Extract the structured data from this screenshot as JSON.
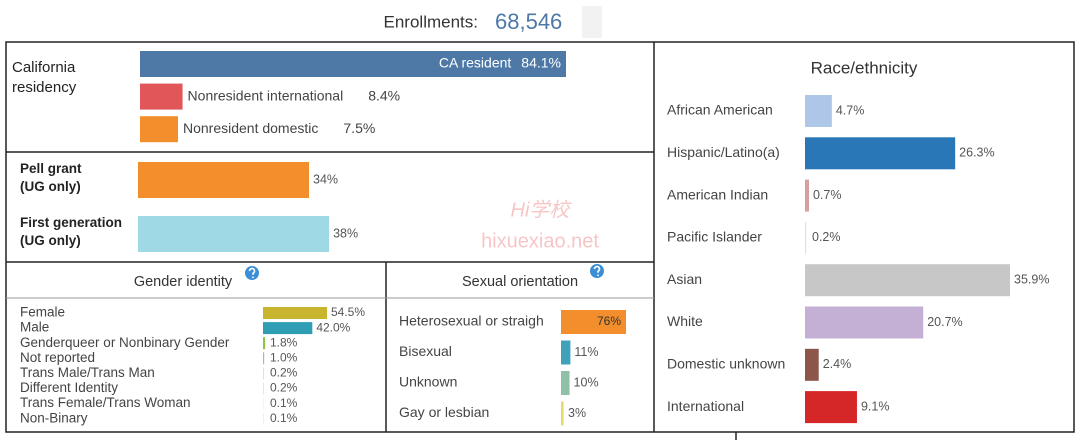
{
  "header": {
    "label": "Enrollments:",
    "value": "68,546"
  },
  "watermark": [
    "Hi学校",
    "hixuexiao.net"
  ],
  "chart_data": [
    {
      "type": "bar",
      "orientation": "horizontal",
      "title": "California\nresidency",
      "categories": [
        "CA resident",
        "Nonresident international",
        "Nonresident domestic"
      ],
      "values": [
        84.1,
        8.4,
        7.5
      ],
      "value_labels": [
        "84.1%",
        "8.4%",
        "7.5%"
      ],
      "colors": [
        "#4e79a7",
        "#e15759",
        "#f28e2b"
      ]
    },
    {
      "type": "bar",
      "orientation": "horizontal",
      "categories": [
        "Pell grant\n(UG only)",
        "First generation\n(UG only)"
      ],
      "values": [
        34,
        38
      ],
      "value_labels": [
        "34%",
        "38%"
      ],
      "colors": [
        "#f28e2b",
        "#a0d9e6"
      ]
    },
    {
      "type": "bar",
      "orientation": "horizontal",
      "title": "Gender identity",
      "categories": [
        "Female",
        "Male",
        "Genderqueer or Nonbinary Gender",
        "Not reported",
        "Trans Male/Trans Man",
        "Different Identity",
        "Trans Female/Trans Woman",
        "Non-Binary"
      ],
      "values": [
        54.5,
        42.0,
        1.8,
        1.0,
        0.2,
        0.2,
        0.1,
        0.1
      ],
      "value_labels": [
        "54.5%",
        "42.0%",
        "1.8%",
        "1.0%",
        "0.2%",
        "0.2%",
        "0.1%",
        "0.1%"
      ],
      "colors": [
        "#c8b42d",
        "#2f9db3",
        "#8cc63f",
        "#bab0ac",
        "#9c755f",
        "#b07aa1",
        "#76b7b2",
        "#4e79a7"
      ]
    },
    {
      "type": "bar",
      "orientation": "horizontal",
      "title": "Sexual orientation",
      "categories": [
        "Heterosexual or straigh",
        "Bisexual",
        "Unknown",
        "Gay or lesbian"
      ],
      "values": [
        76,
        11,
        10,
        3
      ],
      "value_labels": [
        "76%",
        "11%",
        "10%",
        "3%"
      ],
      "colors": [
        "#f28e2b",
        "#3fa2b8",
        "#8fc1a9",
        "#e8d96a"
      ]
    },
    {
      "type": "bar",
      "orientation": "horizontal",
      "title": "Race/ethnicity",
      "categories": [
        "African American",
        "Hispanic/Latino(a)",
        "American Indian",
        "Pacific Islander",
        "Asian",
        "White",
        "Domestic unknown",
        "International"
      ],
      "values": [
        4.7,
        26.3,
        0.7,
        0.2,
        35.9,
        20.7,
        2.4,
        9.1
      ],
      "value_labels": [
        "4.7%",
        "26.3%",
        "0.7%",
        "0.2%",
        "35.9%",
        "20.7%",
        "2.4%",
        "9.1%"
      ],
      "colors": [
        "#aec7e8",
        "#2a77b7",
        "#d4a0a0",
        "#e0e0e0",
        "#c7c7c7",
        "#c5b0d5",
        "#8c564b",
        "#d62728"
      ]
    }
  ]
}
